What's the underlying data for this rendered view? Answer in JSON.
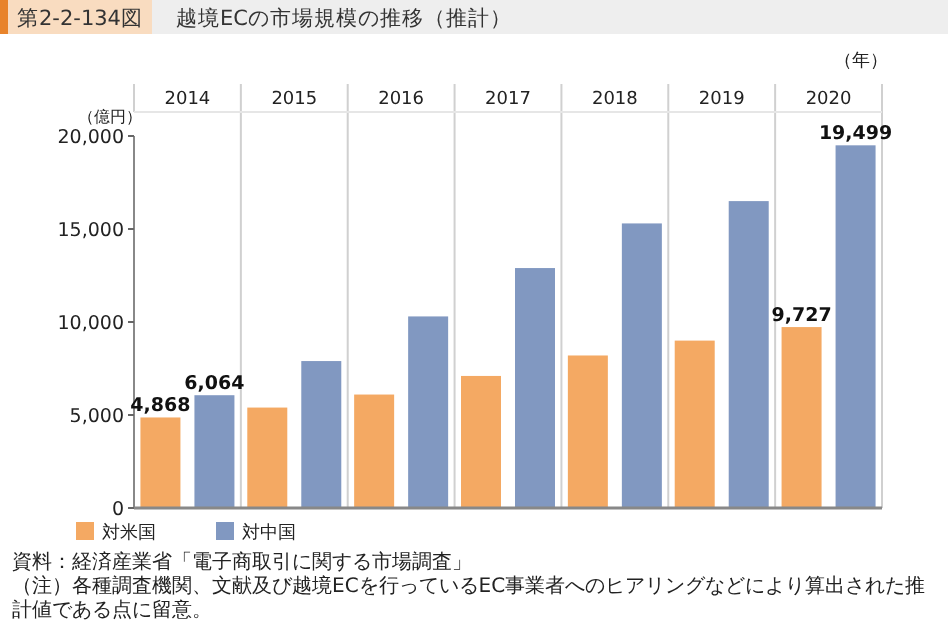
{
  "chart_data": {
    "type": "bar",
    "subtitle": "第2-2-134図",
    "title": "越境ECの市場規模の推移（推計）",
    "xlabel": "（年）",
    "ylabel": "（億円）",
    "categories": [
      "2014",
      "2015",
      "2016",
      "2017",
      "2018",
      "2019",
      "2020"
    ],
    "series": [
      {
        "name": "対米国",
        "color": "#f4a963",
        "values": [
          4868,
          5400,
          6100,
          7100,
          8200,
          9000,
          9727
        ],
        "value_labels": [
          "4,868",
          null,
          null,
          null,
          null,
          null,
          "9,727"
        ]
      },
      {
        "name": "対中国",
        "color": "#8198c1",
        "values": [
          6064,
          7900,
          10300,
          12900,
          15300,
          16500,
          19499
        ],
        "value_labels": [
          "6,064",
          null,
          null,
          null,
          null,
          null,
          "19,499"
        ]
      }
    ],
    "ylim": [
      0,
      20000
    ],
    "yticks": [
      {
        "value": 0,
        "label": "0"
      },
      {
        "value": 5000,
        "label": "5,000"
      },
      {
        "value": 10000,
        "label": "10,000"
      },
      {
        "value": 15000,
        "label": "15,000"
      },
      {
        "value": 20000,
        "label": "20,000"
      }
    ],
    "legend": "bottom left",
    "annotations": [
      "資料：経済産業省「電子商取引に関する市場調査」",
      "（注）各種調査機関、文献及び越境ECを行っているEC事業者へのヒアリングなどにより算出された推計値である点に留意。"
    ]
  }
}
